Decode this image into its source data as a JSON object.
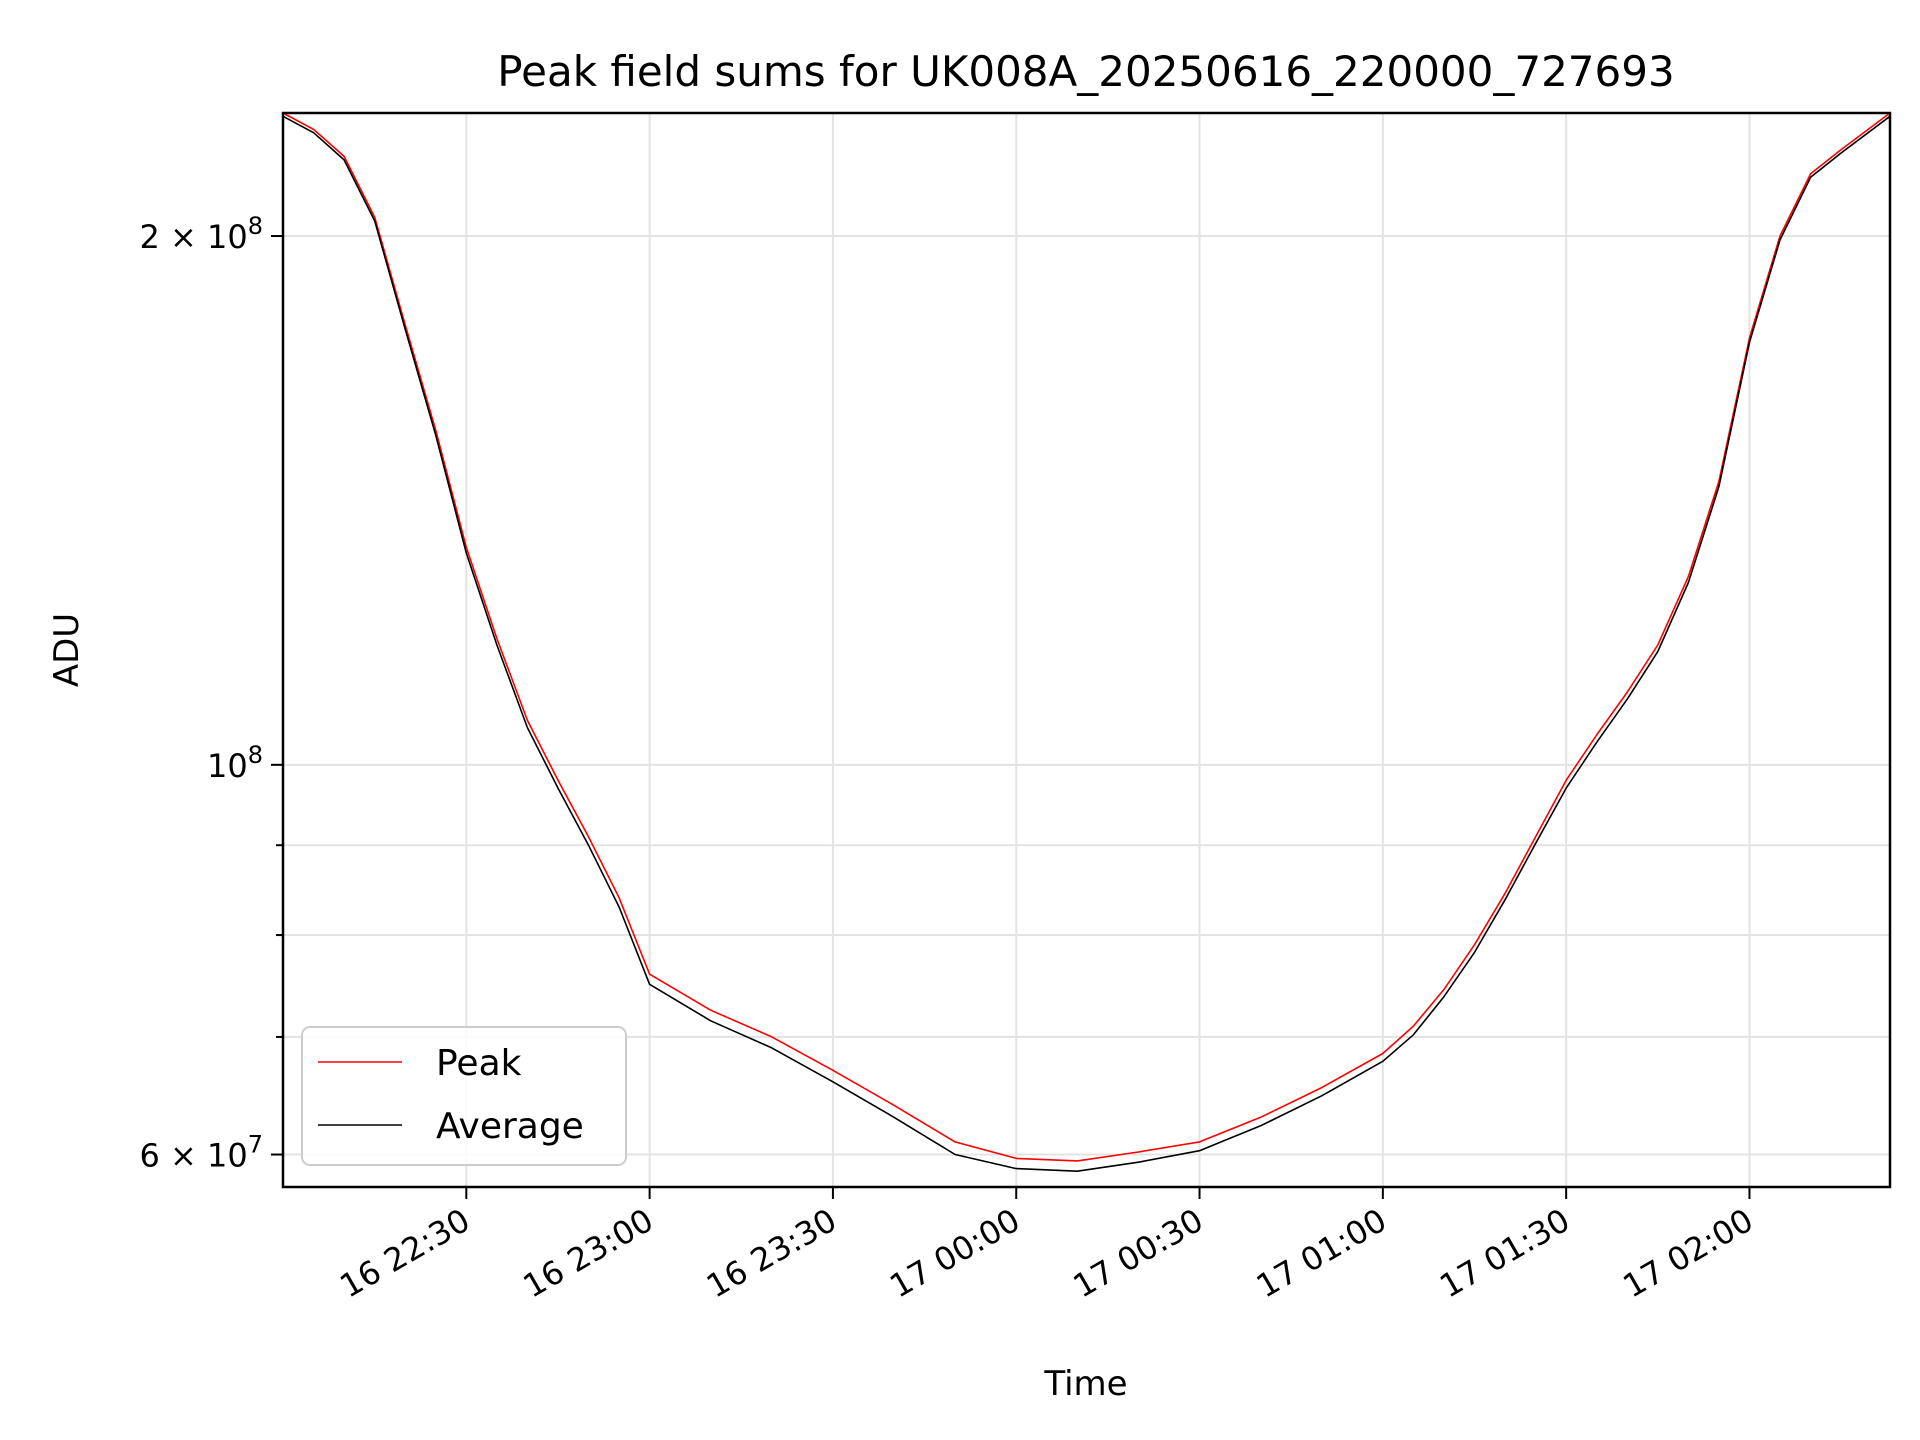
{
  "chart_data": {
    "type": "line",
    "title": "Peak field sums for UK008A_20250616_220000_727693",
    "xlabel": "Time",
    "ylabel": "ADU",
    "xlim": [
      "2025-06-16T22:00:00",
      "2025-06-17T02:23:00"
    ],
    "ylim": [
      57500000,
      235000000
    ],
    "yscale": "log",
    "grid": true,
    "legend_position": "lower-left",
    "x_ticks": [
      {
        "t": "2025-06-16T22:30:00",
        "label": "16 22:30"
      },
      {
        "t": "2025-06-16T23:00:00",
        "label": "16 23:00"
      },
      {
        "t": "2025-06-16T23:30:00",
        "label": "16 23:30"
      },
      {
        "t": "2025-06-17T00:00:00",
        "label": "17 00:00"
      },
      {
        "t": "2025-06-17T00:30:00",
        "label": "17 00:30"
      },
      {
        "t": "2025-06-17T01:00:00",
        "label": "17 01:00"
      },
      {
        "t": "2025-06-17T01:30:00",
        "label": "17 01:30"
      },
      {
        "t": "2025-06-17T02:00:00",
        "label": "17 02:00"
      }
    ],
    "y_ticks": [
      {
        "value": 60000000,
        "base": "6 × 10",
        "exp": "7"
      },
      {
        "value": 100000000,
        "base": "10",
        "exp": "8"
      },
      {
        "value": 200000000,
        "base": "2 × 10",
        "exp": "8"
      }
    ],
    "x": [
      "2025-06-16T22:00:00",
      "2025-06-16T22:05:00",
      "2025-06-16T22:10:00",
      "2025-06-16T22:15:00",
      "2025-06-16T22:20:00",
      "2025-06-16T22:25:00",
      "2025-06-16T22:30:00",
      "2025-06-16T22:35:00",
      "2025-06-16T22:40:00",
      "2025-06-16T22:45:00",
      "2025-06-16T22:50:00",
      "2025-06-16T22:55:00",
      "2025-06-16T23:00:00",
      "2025-06-16T23:10:00",
      "2025-06-16T23:20:00",
      "2025-06-16T23:30:00",
      "2025-06-16T23:40:00",
      "2025-06-16T23:50:00",
      "2025-06-17T00:00:00",
      "2025-06-17T00:10:00",
      "2025-06-17T00:20:00",
      "2025-06-17T00:30:00",
      "2025-06-17T00:40:00",
      "2025-06-17T00:50:00",
      "2025-06-17T01:00:00",
      "2025-06-17T01:05:00",
      "2025-06-17T01:10:00",
      "2025-06-17T01:15:00",
      "2025-06-17T01:20:00",
      "2025-06-17T01:25:00",
      "2025-06-17T01:30:00",
      "2025-06-17T01:35:00",
      "2025-06-17T01:40:00",
      "2025-06-17T01:45:00",
      "2025-06-17T01:50:00",
      "2025-06-17T01:55:00",
      "2025-06-17T02:00:00",
      "2025-06-17T02:05:00",
      "2025-06-17T02:10:00",
      "2025-06-17T02:15:00",
      "2025-06-17T02:23:00"
    ],
    "series": [
      {
        "name": "Peak",
        "color": "#ff0000",
        "values": [
          235000000,
          230000000,
          222000000,
          205000000,
          178000000,
          155000000,
          133000000,
          118000000,
          106000000,
          98000000,
          91000000,
          84000000,
          76000000,
          72500000,
          70000000,
          67000000,
          64000000,
          61000000,
          59700000,
          59500000,
          60200000,
          61000000,
          63000000,
          65500000,
          68500000,
          71000000,
          74500000,
          79000000,
          84500000,
          91000000,
          98000000,
          104000000,
          110000000,
          117000000,
          128000000,
          145000000,
          175000000,
          200000000,
          217000000,
          224000000,
          235000000
        ]
      },
      {
        "name": "Average",
        "color": "#000000",
        "values": [
          234000000,
          229000000,
          221000000,
          204000000,
          177000000,
          154000000,
          132000000,
          117000000,
          105000000,
          97000000,
          90000000,
          83000000,
          75000000,
          71500000,
          69000000,
          66000000,
          63000000,
          60000000,
          58900000,
          58700000,
          59400000,
          60300000,
          62300000,
          64800000,
          67800000,
          70200000,
          73800000,
          78200000,
          83800000,
          90200000,
          97000000,
          103000000,
          109000000,
          116000000,
          127000000,
          144000000,
          174000000,
          199000000,
          216000000,
          223000000,
          234000000
        ]
      }
    ]
  }
}
